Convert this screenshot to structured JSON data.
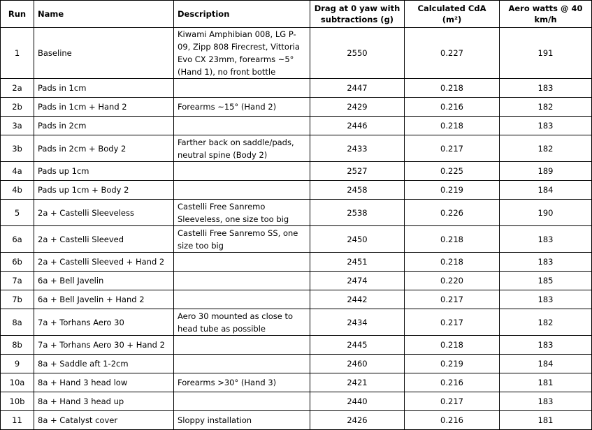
{
  "headers": {
    "run": "Run",
    "name": "Name",
    "description": "Description",
    "drag": "Drag at 0 yaw with subtractions (g)",
    "cda": "Calculated CdA (m²)",
    "watts": "Aero watts @ 40 km/h"
  },
  "rows": [
    {
      "run": "1",
      "name": "Baseline",
      "description": "Kiwami Amphibian 008, LG P-09, Zipp 808 Firecrest, Vittoria Evo CX 23mm, forearms ~5° (Hand 1), no front bottle",
      "drag": "2550",
      "cda": "0.227",
      "watts": "191"
    },
    {
      "run": "2a",
      "name": "Pads in 1cm",
      "description": "",
      "drag": "2447",
      "cda": "0.218",
      "watts": "183"
    },
    {
      "run": "2b",
      "name": "Pads in 1cm + Hand 2",
      "description": "Forearms ~15° (Hand 2)",
      "drag": "2429",
      "cda": "0.216",
      "watts": "182"
    },
    {
      "run": "3a",
      "name": "Pads in 2cm",
      "description": "",
      "drag": "2446",
      "cda": "0.218",
      "watts": "183"
    },
    {
      "run": "3b",
      "name": "Pads in 2cm + Body 2",
      "description": "Farther back on saddle/pads, neutral spine (Body 2)",
      "drag": "2433",
      "cda": "0.217",
      "watts": "182"
    },
    {
      "run": "4a",
      "name": "Pads up 1cm",
      "description": "",
      "drag": "2527",
      "cda": "0.225",
      "watts": "189"
    },
    {
      "run": "4b",
      "name": "Pads up 1cm + Body 2",
      "description": "",
      "drag": "2458",
      "cda": "0.219",
      "watts": "184"
    },
    {
      "run": "5",
      "name": "2a + Castelli Sleeveless",
      "description": "Castelli Free Sanremo Sleeveless, one size too big",
      "drag": "2538",
      "cda": "0.226",
      "watts": "190"
    },
    {
      "run": "6a",
      "name": "2a + Castelli Sleeved",
      "description": "Castelli Free Sanremo SS, one size too big",
      "drag": "2450",
      "cda": "0.218",
      "watts": "183"
    },
    {
      "run": "6b",
      "name": "2a + Castelli Sleeved + Hand 2",
      "description": "",
      "drag": "2451",
      "cda": "0.218",
      "watts": "183"
    },
    {
      "run": "7a",
      "name": "6a + Bell Javelin",
      "description": "",
      "drag": "2474",
      "cda": "0.220",
      "watts": "185"
    },
    {
      "run": "7b",
      "name": "6a + Bell Javelin + Hand 2",
      "description": "",
      "drag": "2442",
      "cda": "0.217",
      "watts": "183"
    },
    {
      "run": "8a",
      "name": "7a + Torhans Aero 30",
      "description": "Aero 30 mounted as close to head tube as possible",
      "drag": "2434",
      "cda": "0.217",
      "watts": "182"
    },
    {
      "run": "8b",
      "name": "7a + Torhans Aero 30 + Hand 2",
      "description": "",
      "drag": "2445",
      "cda": "0.218",
      "watts": "183"
    },
    {
      "run": "9",
      "name": "8a + Saddle aft 1-2cm",
      "description": "",
      "drag": "2460",
      "cda": "0.219",
      "watts": "184"
    },
    {
      "run": "10a",
      "name": "8a + Hand 3 head low",
      "description": "Forearms >30° (Hand 3)",
      "drag": "2421",
      "cda": "0.216",
      "watts": "181"
    },
    {
      "run": "10b",
      "name": "8a + Hand 3 head up",
      "description": "",
      "drag": "2440",
      "cda": "0.217",
      "watts": "183"
    },
    {
      "run": "11",
      "name": "8a + Catalyst cover",
      "description": "Sloppy installation",
      "drag": "2426",
      "cda": "0.216",
      "watts": "181"
    }
  ]
}
